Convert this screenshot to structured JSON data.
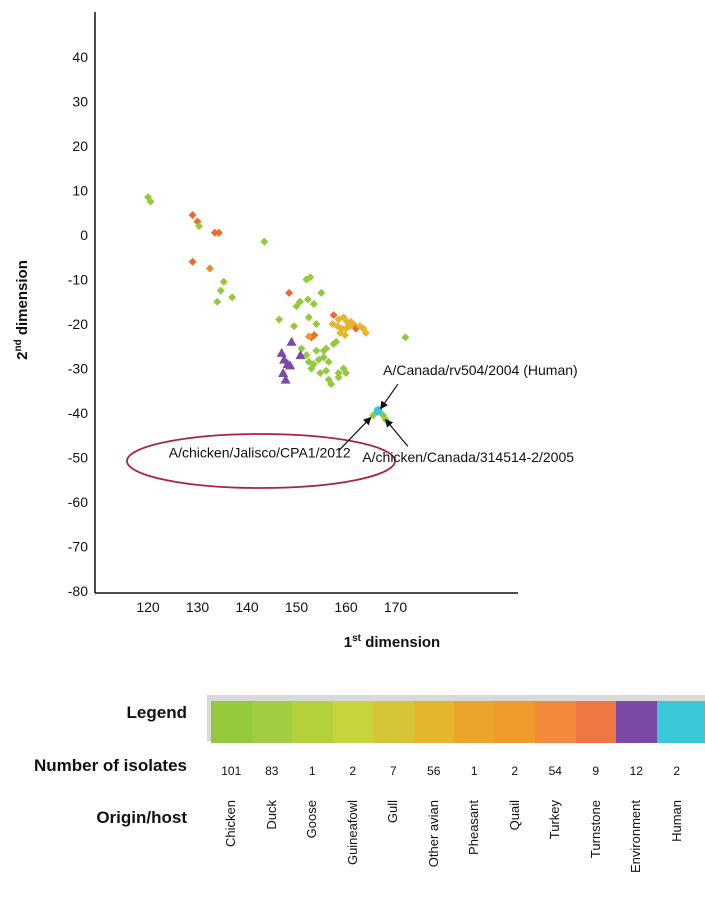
{
  "chart_data": {
    "type": "scatter",
    "xlabel_main": "1",
    "xlabel_sup": "st",
    "xlabel_rest": " dimension",
    "ylabel_main": "2",
    "ylabel_sup": "nd",
    "ylabel_rest": " dimension",
    "xticks": [
      "120",
      "130",
      "140",
      "150",
      "160",
      "170"
    ],
    "yticks": [
      "40",
      "30",
      "20",
      "10",
      "0",
      "-10",
      "-20",
      "-30",
      "-40",
      "-50",
      "-60",
      "-70",
      "-80"
    ],
    "xlim": [
      114,
      178
    ],
    "ylim": [
      -80,
      52
    ],
    "points": [
      {
        "x": 120,
        "y": 8.5,
        "c": "#95c93d",
        "s": "d"
      },
      {
        "x": 120.5,
        "y": 7.5,
        "c": "#95c93d",
        "s": "d"
      },
      {
        "x": 129,
        "y": 4.5,
        "c": "#ee6a2a",
        "s": "d"
      },
      {
        "x": 130,
        "y": 3,
        "c": "#ee6a2a",
        "s": "d"
      },
      {
        "x": 130.3,
        "y": 2,
        "c": "#95c93d",
        "s": "d"
      },
      {
        "x": 133.5,
        "y": 0.5,
        "c": "#ee6a2a",
        "s": "d"
      },
      {
        "x": 134.3,
        "y": 0.5,
        "c": "#ee6a2a",
        "s": "d"
      },
      {
        "x": 129,
        "y": -6,
        "c": "#ee6a2a",
        "s": "d"
      },
      {
        "x": 132.5,
        "y": -7.5,
        "c": "#ee8a2a",
        "s": "d"
      },
      {
        "x": 135.3,
        "y": -10.5,
        "c": "#95c93d",
        "s": "d"
      },
      {
        "x": 134.7,
        "y": -12.5,
        "c": "#95c93d",
        "s": "d"
      },
      {
        "x": 137,
        "y": -14,
        "c": "#95c93d",
        "s": "d"
      },
      {
        "x": 134,
        "y": -15,
        "c": "#95c93d",
        "s": "d"
      },
      {
        "x": 143.5,
        "y": -1.5,
        "c": "#95c93d",
        "s": "d"
      },
      {
        "x": 152,
        "y": -10,
        "c": "#95c93d",
        "s": "d"
      },
      {
        "x": 152.8,
        "y": -9.5,
        "c": "#95c93d",
        "s": "d"
      },
      {
        "x": 148.5,
        "y": -13,
        "c": "#ee6a2a",
        "s": "d"
      },
      {
        "x": 150,
        "y": -16,
        "c": "#95c93d",
        "s": "d"
      },
      {
        "x": 150.7,
        "y": -15,
        "c": "#95c93d",
        "s": "d"
      },
      {
        "x": 152.3,
        "y": -14.5,
        "c": "#95c93d",
        "s": "d"
      },
      {
        "x": 153.5,
        "y": -15.5,
        "c": "#95c93d",
        "s": "d"
      },
      {
        "x": 155,
        "y": -13,
        "c": "#95c93d",
        "s": "d"
      },
      {
        "x": 146.5,
        "y": -19,
        "c": "#95c93d",
        "s": "d"
      },
      {
        "x": 149.5,
        "y": -20.5,
        "c": "#95c93d",
        "s": "d"
      },
      {
        "x": 152.5,
        "y": -18.5,
        "c": "#95c93d",
        "s": "d"
      },
      {
        "x": 154,
        "y": -20,
        "c": "#95c93d",
        "s": "d"
      },
      {
        "x": 153,
        "y": -23,
        "c": "#ee6a2a",
        "s": "d"
      },
      {
        "x": 153.6,
        "y": -22.5,
        "c": "#ee6a2a",
        "s": "d"
      },
      {
        "x": 152.5,
        "y": -22.8,
        "c": "#e89a2a",
        "s": "d"
      },
      {
        "x": 151,
        "y": -25.5,
        "c": "#95c93d",
        "s": "d"
      },
      {
        "x": 154,
        "y": -26,
        "c": "#95c93d",
        "s": "d"
      },
      {
        "x": 155.5,
        "y": -26,
        "c": "#95c93d",
        "s": "d"
      },
      {
        "x": 156,
        "y": -25.5,
        "c": "#95c93d",
        "s": "d"
      },
      {
        "x": 158,
        "y": -24,
        "c": "#95c93d",
        "s": "d"
      },
      {
        "x": 157.5,
        "y": -24.5,
        "c": "#95c93d",
        "s": "d"
      },
      {
        "x": 152,
        "y": -27,
        "c": "#95c93d",
        "s": "d"
      },
      {
        "x": 152.5,
        "y": -28.5,
        "c": "#95c93d",
        "s": "d"
      },
      {
        "x": 153.5,
        "y": -29,
        "c": "#95c93d",
        "s": "d"
      },
      {
        "x": 154.5,
        "y": -28,
        "c": "#95c93d",
        "s": "d"
      },
      {
        "x": 155.5,
        "y": -27.5,
        "c": "#95c93d",
        "s": "d"
      },
      {
        "x": 156.5,
        "y": -28.5,
        "c": "#95c93d",
        "s": "d"
      },
      {
        "x": 153,
        "y": -30,
        "c": "#95c93d",
        "s": "d"
      },
      {
        "x": 154.8,
        "y": -31,
        "c": "#95c93d",
        "s": "d"
      },
      {
        "x": 156,
        "y": -30.5,
        "c": "#95c93d",
        "s": "d"
      },
      {
        "x": 156.5,
        "y": -32.5,
        "c": "#95c93d",
        "s": "d"
      },
      {
        "x": 158.5,
        "y": -31,
        "c": "#95c93d",
        "s": "d"
      },
      {
        "x": 159.5,
        "y": -30,
        "c": "#95c93d",
        "s": "d"
      },
      {
        "x": 160,
        "y": -31,
        "c": "#95c93d",
        "s": "d"
      },
      {
        "x": 157,
        "y": -33.5,
        "c": "#95c93d",
        "s": "d"
      },
      {
        "x": 158.5,
        "y": -32,
        "c": "#95c93d",
        "s": "d"
      },
      {
        "x": 157.5,
        "y": -18,
        "c": "#ee6a2a",
        "s": "d"
      },
      {
        "x": 158.5,
        "y": -19,
        "c": "#e4b52d",
        "s": "d"
      },
      {
        "x": 159.5,
        "y": -18.5,
        "c": "#e4b52d",
        "s": "d"
      },
      {
        "x": 160.2,
        "y": -19.5,
        "c": "#e4b52d",
        "s": "d"
      },
      {
        "x": 157.3,
        "y": -20,
        "c": "#e4b52d",
        "s": "d"
      },
      {
        "x": 158.3,
        "y": -20.5,
        "c": "#e4b52d",
        "s": "d"
      },
      {
        "x": 159.2,
        "y": -21,
        "c": "#e4b52d",
        "s": "d"
      },
      {
        "x": 160,
        "y": -21,
        "c": "#e4b52d",
        "s": "d"
      },
      {
        "x": 160.8,
        "y": -20.5,
        "c": "#e4b52d",
        "s": "d"
      },
      {
        "x": 161.5,
        "y": -20,
        "c": "#e4b52d",
        "s": "d"
      },
      {
        "x": 162,
        "y": -21,
        "c": "#ee6a2a",
        "s": "d"
      },
      {
        "x": 162.8,
        "y": -20.5,
        "c": "#e4b52d",
        "s": "d"
      },
      {
        "x": 163.5,
        "y": -21,
        "c": "#e4b52d",
        "s": "d"
      },
      {
        "x": 164,
        "y": -22,
        "c": "#e4b52d",
        "s": "d"
      },
      {
        "x": 161,
        "y": -19.5,
        "c": "#e4b52d",
        "s": "d"
      },
      {
        "x": 158.8,
        "y": -22,
        "c": "#e4b52d",
        "s": "d"
      },
      {
        "x": 159.8,
        "y": -22.5,
        "c": "#e4b52d",
        "s": "d"
      },
      {
        "x": 172,
        "y": -23,
        "c": "#95c93d",
        "s": "d"
      },
      {
        "x": 165.5,
        "y": -40.5,
        "c": "#95c93d",
        "s": "d"
      },
      {
        "x": 167.5,
        "y": -40.5,
        "c": "#95c93d",
        "s": "d"
      },
      {
        "x": 168,
        "y": -41.5,
        "c": "#95c93d",
        "s": "d"
      },
      {
        "x": 166.5,
        "y": -39.5,
        "c": "#3bc8d6",
        "s": "c"
      },
      {
        "x": 147,
        "y": -26.5,
        "c": "#7b4aa6",
        "s": "t"
      },
      {
        "x": 149,
        "y": -24,
        "c": "#7b4aa6",
        "s": "t"
      },
      {
        "x": 147.5,
        "y": -28,
        "c": "#7b4aa6",
        "s": "t"
      },
      {
        "x": 148.2,
        "y": -29,
        "c": "#7b4aa6",
        "s": "t"
      },
      {
        "x": 147.3,
        "y": -31,
        "c": "#7b4aa6",
        "s": "t"
      },
      {
        "x": 148.7,
        "y": -29.3,
        "c": "#7b4aa6",
        "s": "t"
      },
      {
        "x": 147.8,
        "y": -32.5,
        "c": "#7b4aa6",
        "s": "t"
      },
      {
        "x": 150.8,
        "y": -27,
        "c": "#7b4aa6",
        "s": "t"
      }
    ],
    "annotations": [
      {
        "text": "A/Canada/rv504/2004 (Human)",
        "tx": 167.5,
        "ty": -31.5,
        "ax1": 170.5,
        "ay1": -33.5,
        "ax2": 167,
        "ay2": -39
      },
      {
        "text": "A/chicken/Canada/314514-2/2005",
        "tx": 163.3,
        "ty": -51,
        "ax1": 172.5,
        "ay1": -47.5,
        "ax2": 168,
        "ay2": -41.5
      },
      {
        "text": "A/chicken/Jalisco/CPA1/2012",
        "tx": 124.2,
        "ty": -50,
        "ax1": 158.5,
        "ay1": -48.5,
        "ax2": 165,
        "ay2": -41
      }
    ],
    "legend": {
      "legend_label": "Legend",
      "count_label": "Number of isolates",
      "host_label": "Origin/host",
      "entries": [
        {
          "host": "Chicken",
          "count": "101",
          "color": "#95c93d"
        },
        {
          "host": "Duck",
          "count": "83",
          "color": "#a0cd42"
        },
        {
          "host": "Goose",
          "count": "1",
          "color": "#b4d13b"
        },
        {
          "host": "Guineafowl",
          "count": "2",
          "color": "#c8d53a"
        },
        {
          "host": "Gull",
          "count": "7",
          "color": "#d6c635"
        },
        {
          "host": "Other avian",
          "count": "56",
          "color": "#e4b52d"
        },
        {
          "host": "Pheasant",
          "count": "1",
          "color": "#eaa52a"
        },
        {
          "host": "Quail",
          "count": "2",
          "color": "#f09a2c"
        },
        {
          "host": "Turkey",
          "count": "54",
          "color": "#f28a3a"
        },
        {
          "host": "Turnstone",
          "count": "9",
          "color": "#ef7744"
        },
        {
          "host": "Environment",
          "count": "12",
          "color": "#7b4aa6"
        },
        {
          "host": "Human",
          "count": "2",
          "color": "#3bc8d6"
        }
      ]
    }
  }
}
